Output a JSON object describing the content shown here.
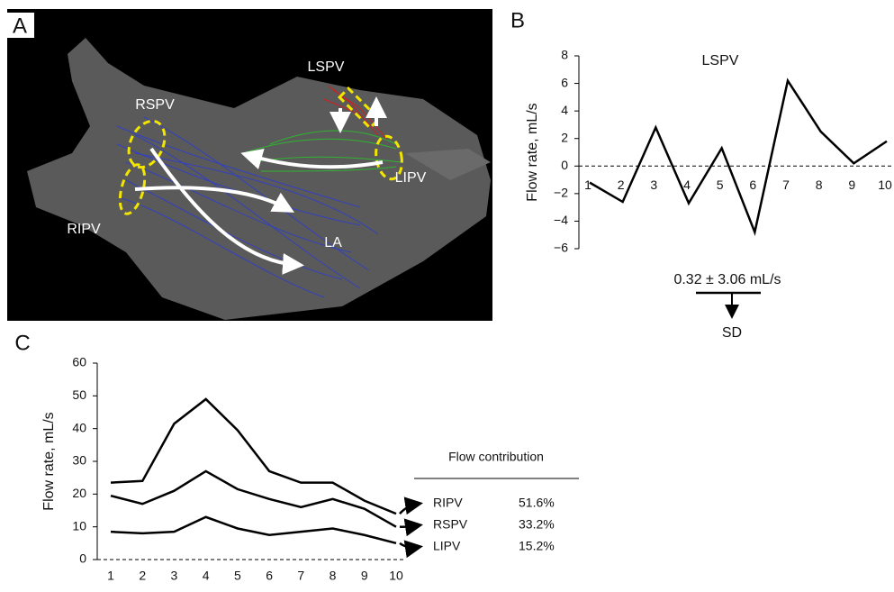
{
  "panel_labels": [
    "A",
    "B",
    "C"
  ],
  "image_labels": [
    "LSPV",
    "RSPV",
    "RIPV",
    "LIPV",
    "LA"
  ],
  "chart_data": [
    {
      "type": "line",
      "annotation": "LSPV",
      "y_label": "Flow rate, mL/s",
      "categories": [
        "1",
        "2",
        "3",
        "4",
        "5",
        "6",
        "7",
        "8",
        "9",
        "10"
      ],
      "values": [
        -1.2,
        -2.6,
        2.8,
        -2.7,
        1.3,
        -4.8,
        6.2,
        2.5,
        0.2,
        1.8
      ],
      "color": "#000000",
      "ylim": [
        -6,
        8
      ],
      "yticks": [
        {
          "value": -6,
          "label": "−6"
        },
        {
          "value": -4,
          "label": "−4"
        },
        {
          "value": -2,
          "label": "−2"
        },
        0,
        2,
        4,
        6,
        8
      ],
      "hline": 0,
      "summary": "0.32 ± 3.06 mL/s",
      "summary_note": "SD"
    },
    {
      "type": "line",
      "y_label": "Flow rate, mL/s",
      "categories": [
        "1",
        "2",
        "3",
        "4",
        "5",
        "6",
        "7",
        "8",
        "9",
        "10"
      ],
      "series": [
        {
          "name": "RIPV",
          "color": "#000000",
          "values": [
            23.5,
            24,
            41.5,
            49,
            39.5,
            27,
            23.5,
            23.5,
            18,
            14
          ]
        },
        {
          "name": "RSPV",
          "color": "#000000",
          "values": [
            19.5,
            17,
            21,
            27,
            21.5,
            18.5,
            16,
            18.5,
            15.5,
            10
          ]
        },
        {
          "name": "LIPV",
          "color": "#000000",
          "values": [
            8.5,
            8,
            8.5,
            13,
            9.5,
            7.5,
            8.5,
            9.5,
            7.5,
            5
          ]
        }
      ],
      "ylim": [
        0,
        60
      ],
      "yticks": [
        0,
        10,
        20,
        30,
        40,
        50,
        60
      ],
      "hline": 0,
      "contribution": {
        "title": "Flow contribution",
        "values": [
          51.6,
          33.2,
          15.2
        ],
        "value_labels": [
          "51.6%",
          "33.2%",
          "15.2%"
        ]
      }
    }
  ]
}
